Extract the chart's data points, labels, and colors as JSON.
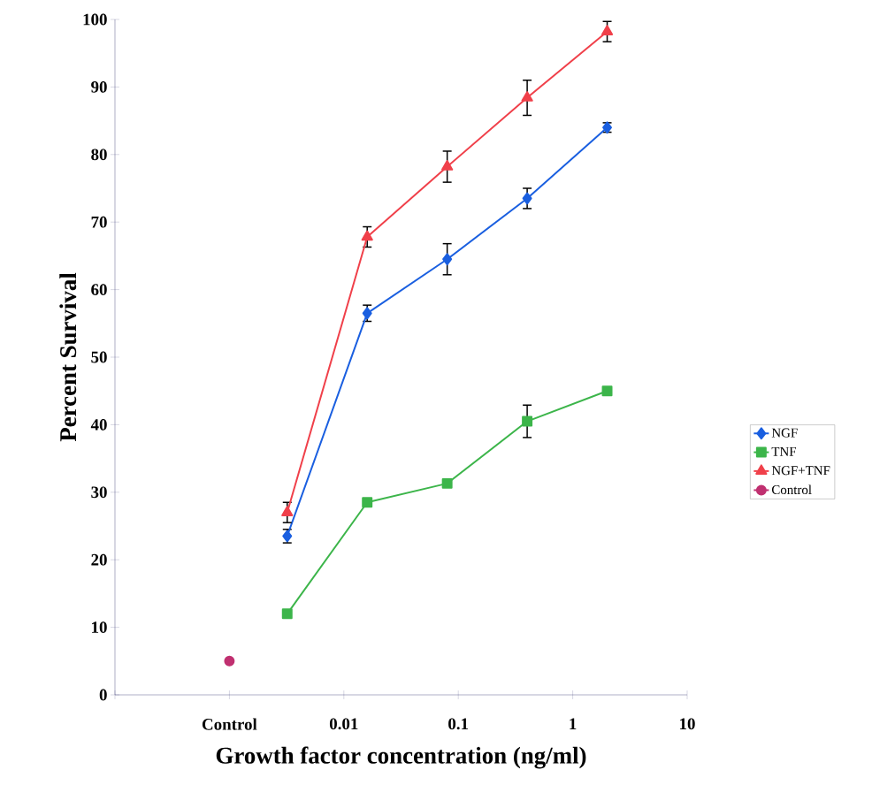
{
  "chart_data": {
    "type": "line",
    "xlabel": "Growth factor concentration (ng/ml)",
    "ylabel": "Percent Survival",
    "log": "x",
    "xlim": [
      0.0001,
      10
    ],
    "xticks": [
      {
        "value": 0.0001,
        "label": null
      },
      {
        "value": 0.001,
        "label": "Control"
      },
      0.01,
      0.1,
      1,
      10
    ],
    "ylim": [
      0,
      100
    ],
    "yticks": [
      0,
      10,
      20,
      30,
      40,
      50,
      60,
      70,
      80,
      90,
      100
    ],
    "grid": false,
    "legend": "right",
    "line_style": "solid",
    "series": [
      {
        "name": "NGF",
        "color": "#1a5fe0",
        "marker": "diamond",
        "x": [
          0.0032,
          0.016,
          0.08,
          0.4,
          2
        ],
        "values": [
          23.5,
          56.5,
          64.5,
          73.5,
          84
        ],
        "errors": [
          1,
          1.2,
          2.3,
          1.5,
          0.7
        ]
      },
      {
        "name": "TNF",
        "color": "#3cb54a",
        "marker": "square",
        "x": [
          0.0032,
          0.016,
          0.08,
          0.4,
          2
        ],
        "values": [
          12,
          28.5,
          31.3,
          40.5,
          45
        ],
        "errors": [
          null,
          null,
          null,
          2.4,
          null
        ]
      },
      {
        "name": "NGF+TNF",
        "color": "#f0404a",
        "marker": "triangle",
        "x": [
          0.0032,
          0.016,
          0.08,
          0.4,
          2
        ],
        "values": [
          27,
          67.8,
          78.2,
          88.4,
          98.2
        ],
        "errors": [
          1.5,
          1.5,
          2.3,
          2.6,
          1.5
        ]
      },
      {
        "name": "Control",
        "color": "#c03070",
        "marker": "circle",
        "x": [
          0.001
        ],
        "values": [
          5
        ]
      }
    ]
  }
}
